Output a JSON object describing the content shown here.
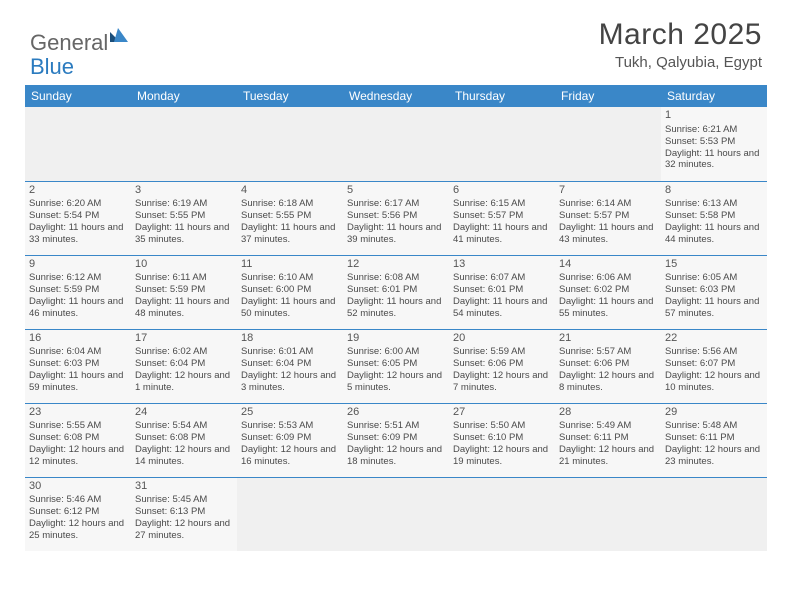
{
  "brand": {
    "part1": "General",
    "part2": "Blue"
  },
  "title": "March 2025",
  "location": "Tukh, Qalyubia, Egypt",
  "dayHeaders": [
    "Sunday",
    "Monday",
    "Tuesday",
    "Wednesday",
    "Thursday",
    "Friday",
    "Saturday"
  ],
  "colors": {
    "headerBg": "#3a87c8",
    "headerText": "#ffffff",
    "cellBg": "#f7f7f7",
    "border": "#3a87c8"
  },
  "weeks": [
    [
      null,
      null,
      null,
      null,
      null,
      null,
      {
        "d": "1",
        "sr": "6:21 AM",
        "ss": "5:53 PM",
        "dl": "11 hours and 32 minutes."
      }
    ],
    [
      {
        "d": "2",
        "sr": "6:20 AM",
        "ss": "5:54 PM",
        "dl": "11 hours and 33 minutes."
      },
      {
        "d": "3",
        "sr": "6:19 AM",
        "ss": "5:55 PM",
        "dl": "11 hours and 35 minutes."
      },
      {
        "d": "4",
        "sr": "6:18 AM",
        "ss": "5:55 PM",
        "dl": "11 hours and 37 minutes."
      },
      {
        "d": "5",
        "sr": "6:17 AM",
        "ss": "5:56 PM",
        "dl": "11 hours and 39 minutes."
      },
      {
        "d": "6",
        "sr": "6:15 AM",
        "ss": "5:57 PM",
        "dl": "11 hours and 41 minutes."
      },
      {
        "d": "7",
        "sr": "6:14 AM",
        "ss": "5:57 PM",
        "dl": "11 hours and 43 minutes."
      },
      {
        "d": "8",
        "sr": "6:13 AM",
        "ss": "5:58 PM",
        "dl": "11 hours and 44 minutes."
      }
    ],
    [
      {
        "d": "9",
        "sr": "6:12 AM",
        "ss": "5:59 PM",
        "dl": "11 hours and 46 minutes."
      },
      {
        "d": "10",
        "sr": "6:11 AM",
        "ss": "5:59 PM",
        "dl": "11 hours and 48 minutes."
      },
      {
        "d": "11",
        "sr": "6:10 AM",
        "ss": "6:00 PM",
        "dl": "11 hours and 50 minutes."
      },
      {
        "d": "12",
        "sr": "6:08 AM",
        "ss": "6:01 PM",
        "dl": "11 hours and 52 minutes."
      },
      {
        "d": "13",
        "sr": "6:07 AM",
        "ss": "6:01 PM",
        "dl": "11 hours and 54 minutes."
      },
      {
        "d": "14",
        "sr": "6:06 AM",
        "ss": "6:02 PM",
        "dl": "11 hours and 55 minutes."
      },
      {
        "d": "15",
        "sr": "6:05 AM",
        "ss": "6:03 PM",
        "dl": "11 hours and 57 minutes."
      }
    ],
    [
      {
        "d": "16",
        "sr": "6:04 AM",
        "ss": "6:03 PM",
        "dl": "11 hours and 59 minutes."
      },
      {
        "d": "17",
        "sr": "6:02 AM",
        "ss": "6:04 PM",
        "dl": "12 hours and 1 minute."
      },
      {
        "d": "18",
        "sr": "6:01 AM",
        "ss": "6:04 PM",
        "dl": "12 hours and 3 minutes."
      },
      {
        "d": "19",
        "sr": "6:00 AM",
        "ss": "6:05 PM",
        "dl": "12 hours and 5 minutes."
      },
      {
        "d": "20",
        "sr": "5:59 AM",
        "ss": "6:06 PM",
        "dl": "12 hours and 7 minutes."
      },
      {
        "d": "21",
        "sr": "5:57 AM",
        "ss": "6:06 PM",
        "dl": "12 hours and 8 minutes."
      },
      {
        "d": "22",
        "sr": "5:56 AM",
        "ss": "6:07 PM",
        "dl": "12 hours and 10 minutes."
      }
    ],
    [
      {
        "d": "23",
        "sr": "5:55 AM",
        "ss": "6:08 PM",
        "dl": "12 hours and 12 minutes."
      },
      {
        "d": "24",
        "sr": "5:54 AM",
        "ss": "6:08 PM",
        "dl": "12 hours and 14 minutes."
      },
      {
        "d": "25",
        "sr": "5:53 AM",
        "ss": "6:09 PM",
        "dl": "12 hours and 16 minutes."
      },
      {
        "d": "26",
        "sr": "5:51 AM",
        "ss": "6:09 PM",
        "dl": "12 hours and 18 minutes."
      },
      {
        "d": "27",
        "sr": "5:50 AM",
        "ss": "6:10 PM",
        "dl": "12 hours and 19 minutes."
      },
      {
        "d": "28",
        "sr": "5:49 AM",
        "ss": "6:11 PM",
        "dl": "12 hours and 21 minutes."
      },
      {
        "d": "29",
        "sr": "5:48 AM",
        "ss": "6:11 PM",
        "dl": "12 hours and 23 minutes."
      }
    ],
    [
      {
        "d": "30",
        "sr": "5:46 AM",
        "ss": "6:12 PM",
        "dl": "12 hours and 25 minutes."
      },
      {
        "d": "31",
        "sr": "5:45 AM",
        "ss": "6:13 PM",
        "dl": "12 hours and 27 minutes."
      },
      null,
      null,
      null,
      null,
      null
    ]
  ],
  "labels": {
    "sunrise": "Sunrise:",
    "sunset": "Sunset:",
    "daylight": "Daylight:"
  }
}
